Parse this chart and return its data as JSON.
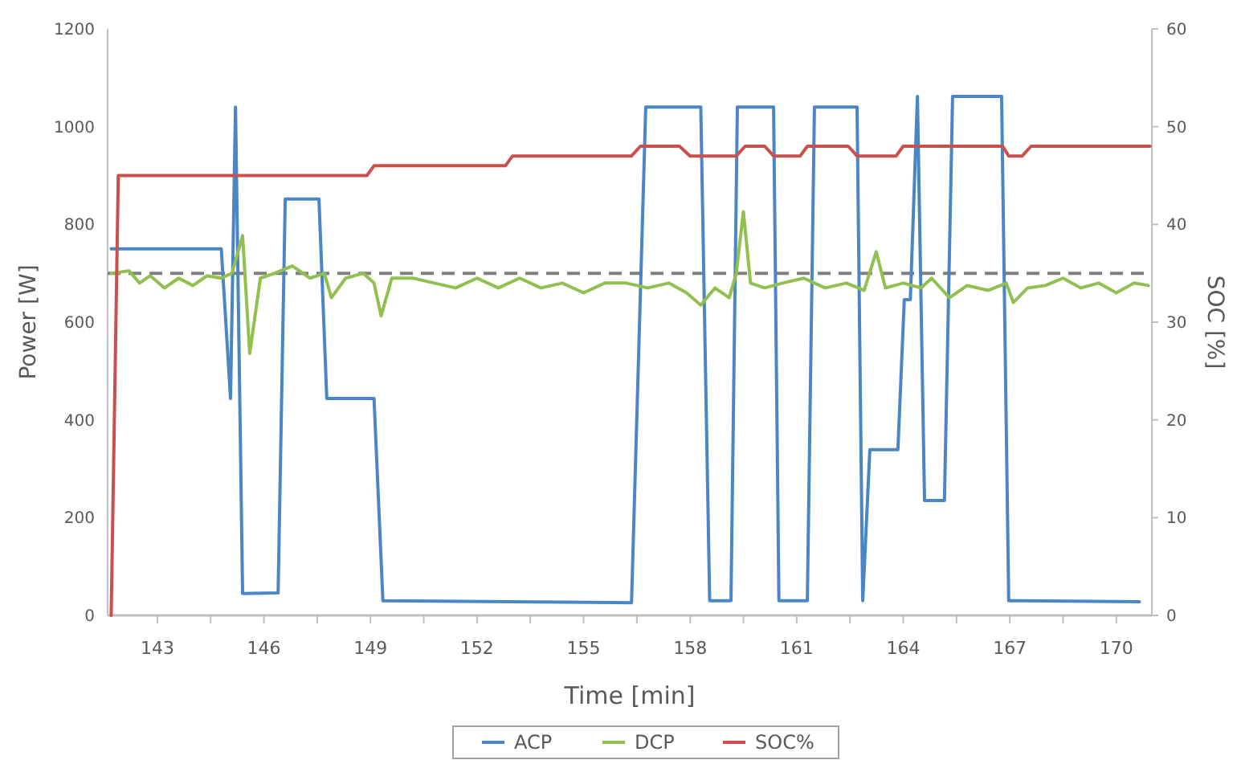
{
  "chart_data": {
    "type": "line",
    "xlabel": "Time [min]",
    "ylabel": "Power [W]",
    "y2label": "SOC [%]",
    "xlim": [
      141.6,
      171
    ],
    "ylim": [
      0,
      1200
    ],
    "y2lim": [
      0,
      60
    ],
    "xticks": [
      143,
      {
        "value": 144.5,
        "label": null
      },
      146,
      {
        "value": 147.5,
        "label": null
      },
      149,
      {
        "value": 150.5,
        "label": null
      },
      152,
      {
        "value": 153.5,
        "label": null
      },
      155,
      {
        "value": 156.5,
        "label": null
      },
      158,
      {
        "value": 159.5,
        "label": null
      },
      161,
      {
        "value": 162.5,
        "label": null
      },
      164,
      {
        "value": 165.5,
        "label": null
      },
      167,
      {
        "value": 168.5,
        "label": null
      },
      170
    ],
    "yticks": [
      0,
      200,
      400,
      600,
      800,
      1000,
      1200
    ],
    "y2ticks": [
      0,
      10,
      20,
      30,
      40,
      50,
      60
    ],
    "grid": false,
    "legend": "bottom",
    "line_style": "solid",
    "marker": "none",
    "ref_lines": [
      {
        "axis": "y",
        "value": 700,
        "label": null,
        "color": "#808080",
        "line_style": "dashed"
      }
    ],
    "series": [
      {
        "name": "ACP",
        "color": "#4a86c5",
        "x": [
          141.7,
          144.8,
          145.06,
          145.2,
          145.4,
          146.4,
          146.6,
          147.55,
          147.77,
          149.1,
          149.35,
          156.35,
          156.75,
          158.3,
          158.55,
          159.15,
          159.33,
          160.35,
          160.5,
          161.3,
          161.5,
          162.7,
          162.86,
          163.06,
          163.85,
          164.03,
          164.2,
          164.4,
          164.6,
          165.16,
          165.39,
          166.77,
          166.97,
          170.65
        ],
        "values": [
          750,
          750,
          444,
          1040,
          45,
          46,
          852,
          852,
          444,
          444,
          30,
          26,
          1040,
          1040,
          30,
          30,
          1040,
          1040,
          30,
          30,
          1040,
          1040,
          30,
          339,
          339,
          646,
          646,
          1062,
          235,
          235,
          1062,
          1062,
          30,
          28
        ]
      },
      {
        "name": "DCP",
        "color": "#92c050",
        "x": [
          141.7,
          142.2,
          142.5,
          142.8,
          143.2,
          143.6,
          144.0,
          144.4,
          144.8,
          145.1,
          145.4,
          145.6,
          145.9,
          146.3,
          146.8,
          147.3,
          147.7,
          147.9,
          148.3,
          148.8,
          149.1,
          149.3,
          149.6,
          150.2,
          150.8,
          151.4,
          152.0,
          152.6,
          153.2,
          153.8,
          154.4,
          155.0,
          155.6,
          156.2,
          156.8,
          157.4,
          157.9,
          158.3,
          158.7,
          159.1,
          159.3,
          159.5,
          159.7,
          160.1,
          160.6,
          161.2,
          161.8,
          162.4,
          162.9,
          163.24,
          163.5,
          164.0,
          164.5,
          164.8,
          165.3,
          165.8,
          166.4,
          166.9,
          167.1,
          167.5,
          168.0,
          168.5,
          169.0,
          169.5,
          170.0,
          170.5,
          170.9
        ],
        "values": [
          700,
          705,
          680,
          695,
          670,
          690,
          675,
          695,
          690,
          700,
          777,
          536,
          690,
          700,
          715,
          690,
          700,
          650,
          690,
          700,
          680,
          613,
          690,
          690,
          680,
          670,
          690,
          670,
          690,
          670,
          680,
          660,
          680,
          680,
          670,
          680,
          660,
          635,
          670,
          650,
          700,
          826,
          680,
          670,
          680,
          690,
          670,
          680,
          665,
          744,
          670,
          680,
          670,
          690,
          650,
          675,
          665,
          680,
          640,
          670,
          675,
          690,
          670,
          680,
          660,
          680,
          675
        ]
      },
      {
        "name": "SOC%",
        "color": "#c9504c",
        "axis": "y2",
        "x": [
          141.7,
          141.9,
          148.9,
          149.1,
          152.8,
          153.0,
          156.35,
          156.6,
          157.7,
          158.0,
          159.3,
          159.55,
          160.1,
          160.35,
          161.1,
          161.3,
          162.45,
          162.7,
          163.8,
          164.0,
          166.8,
          166.97,
          167.35,
          167.6,
          170.95
        ],
        "values": [
          0,
          45,
          45,
          46,
          46,
          47,
          47,
          48,
          48,
          47,
          47,
          48,
          48,
          47,
          47,
          48,
          48,
          47,
          47,
          48,
          48,
          47,
          47,
          48,
          48
        ]
      }
    ]
  }
}
